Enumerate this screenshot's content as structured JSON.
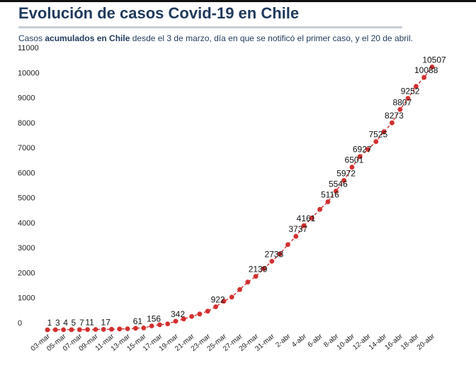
{
  "title": "Evolución de casos Covid-19 en Chile",
  "subtitle": {
    "prefix": "Casos ",
    "bold": "acumulados en Chile",
    "suffix": " desde el 3 de marzo, día en que se notificó el primer caso, y el 20 de abril."
  },
  "colors": {
    "title": "#1f3a5c",
    "series": "#d32f2f",
    "underline": "#c7cfd8"
  },
  "chart_data": {
    "type": "line",
    "title": "Evolución de casos Covid-19 en Chile",
    "xlabel": "",
    "ylabel": "",
    "ylim": [
      0,
      11000
    ],
    "y_ticks": [
      0,
      1000,
      2000,
      3000,
      4000,
      5000,
      6000,
      7000,
      8000,
      9000,
      10000,
      11000
    ],
    "grid": false,
    "legend": "none",
    "x": [
      "03-mar",
      "04-mar",
      "05-mar",
      "06-mar",
      "07-mar",
      "08-mar",
      "09-mar",
      "10-mar",
      "11-mar",
      "12-mar",
      "13-mar",
      "14-mar",
      "15-mar",
      "16-mar",
      "17-mar",
      "18-mar",
      "19-mar",
      "20-mar",
      "21-mar",
      "22-mar",
      "23-mar",
      "24-mar",
      "25-mar",
      "26-mar",
      "27-mar",
      "28-mar",
      "29-mar",
      "30-mar",
      "31-mar",
      "1-abr",
      "2-abr",
      "3-abr",
      "4-abr",
      "5-abr",
      "6-abr",
      "7-abr",
      "8-abr",
      "9-abr",
      "10-abr",
      "11-abr",
      "12-abr",
      "13-abr",
      "14-abr",
      "15-abr",
      "16-abr",
      "17-abr",
      "18-abr",
      "19-abr",
      "20-abr"
    ],
    "x_tick_labels": [
      "03-mar",
      "05-mar",
      "07-mar",
      "09-mar",
      "11-mar",
      "13-mar",
      "15-mar",
      "17-mar",
      "19-mar",
      "21-mar",
      "23-mar",
      "25-mar",
      "27-mar",
      "29-mar",
      "31-mar",
      "2-abr",
      "4-abr",
      "6-abr",
      "8-abr",
      "10-abr",
      "12-abr",
      "14-abr",
      "16-abr",
      "18-abr",
      "20-abr"
    ],
    "series": [
      {
        "values": [
          1,
          3,
          4,
          5,
          7,
          11,
          13,
          17,
          23,
          33,
          43,
          61,
          75,
          156,
          201,
          238,
          342,
          434,
          537,
          632,
          746,
          922,
          1142,
          1306,
          1610,
          1909,
          2139,
          2449,
          2738,
          3031,
          3404,
          3737,
          4161,
          4471,
          4815,
          5116,
          5546,
          5972,
          6501,
          6927,
          7213,
          7525,
          7917,
          8273,
          8807,
          9252,
          9730,
          10088,
          10507
        ]
      }
    ],
    "data_labels": [
      {
        "index": 0,
        "text": "1"
      },
      {
        "index": 1,
        "text": "3"
      },
      {
        "index": 2,
        "text": "4"
      },
      {
        "index": 3,
        "text": "5"
      },
      {
        "index": 4,
        "text": "7"
      },
      {
        "index": 5,
        "text": "11"
      },
      {
        "index": 7,
        "text": "17"
      },
      {
        "index": 11,
        "text": "61"
      },
      {
        "index": 13,
        "text": "156"
      },
      {
        "index": 16,
        "text": "342"
      },
      {
        "index": 21,
        "text": "922"
      },
      {
        "index": 26,
        "text": "2139"
      },
      {
        "index": 28,
        "text": "2738"
      },
      {
        "index": 31,
        "text": "3737"
      },
      {
        "index": 32,
        "text": "4161"
      },
      {
        "index": 35,
        "text": "5116"
      },
      {
        "index": 36,
        "text": "5546"
      },
      {
        "index": 37,
        "text": "5972"
      },
      {
        "index": 38,
        "text": "6501"
      },
      {
        "index": 39,
        "text": "6927"
      },
      {
        "index": 41,
        "text": "7525"
      },
      {
        "index": 43,
        "text": "8273"
      },
      {
        "index": 44,
        "text": "8807"
      },
      {
        "index": 45,
        "text": "9252"
      },
      {
        "index": 47,
        "text": "10088"
      },
      {
        "index": 48,
        "text": "10507"
      }
    ]
  }
}
